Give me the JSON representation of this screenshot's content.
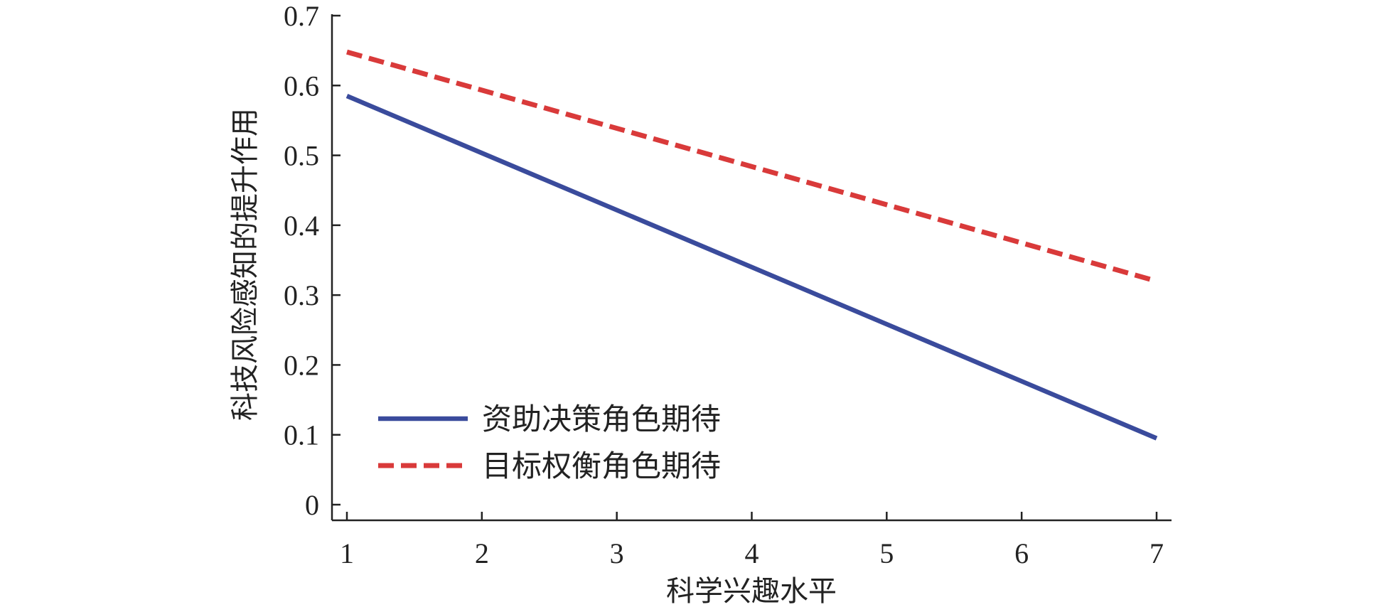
{
  "chart_data": {
    "type": "line",
    "title": "",
    "xlabel": "科学兴趣水平",
    "ylabel": "科技风险感知的提升作用",
    "xlim": [
      1,
      7
    ],
    "ylim": [
      0,
      0.7
    ],
    "xticks": [
      1,
      2,
      3,
      4,
      5,
      6,
      7
    ],
    "yticks": [
      0,
      0.1,
      0.2,
      0.3,
      0.4,
      0.5,
      0.6,
      0.7
    ],
    "xtick_labels": [
      "1",
      "2",
      "3",
      "4",
      "5",
      "6",
      "7"
    ],
    "ytick_labels": [
      "0",
      "0.1",
      "0.2",
      "0.3",
      "0.4",
      "0.5",
      "0.6",
      "0.7"
    ],
    "grid": false,
    "legend_position": "bottom-left",
    "series": [
      {
        "name": "资助决策角色期待",
        "color": "#3a4b9c",
        "style": "solid",
        "x": [
          1,
          7
        ],
        "y": [
          0.585,
          0.095
        ]
      },
      {
        "name": "目标权衡角色期待",
        "color": "#d93a3a",
        "style": "dashed",
        "x": [
          1,
          7
        ],
        "y": [
          0.648,
          0.32
        ]
      }
    ]
  }
}
